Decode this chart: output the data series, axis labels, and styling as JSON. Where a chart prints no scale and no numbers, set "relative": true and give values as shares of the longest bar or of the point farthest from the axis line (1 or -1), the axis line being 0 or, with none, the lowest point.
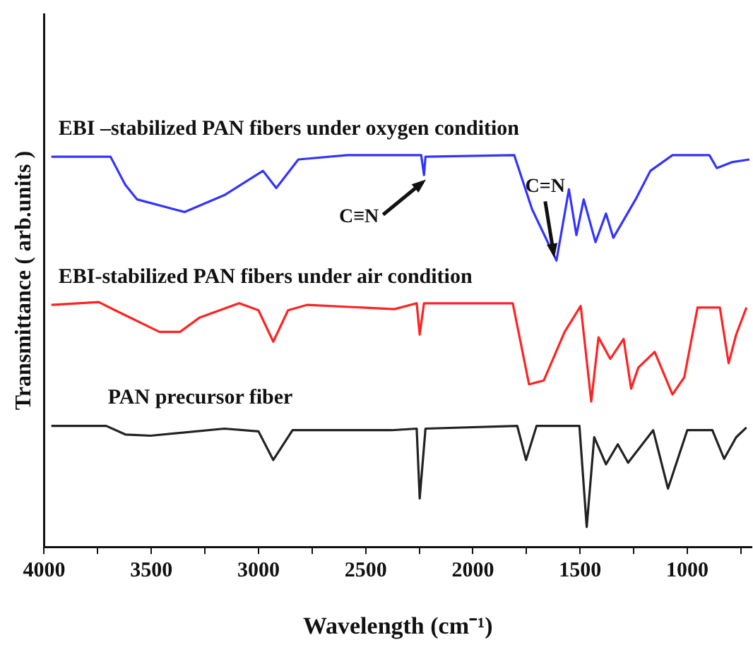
{
  "chart_data": {
    "type": "line",
    "relative": true,
    "xlabel": "Wavelength (cm⁻¹)",
    "ylabel": "Transmittance ( arb.units )",
    "xlim": [
      4000,
      700
    ],
    "xticks": [
      4000,
      {
        "value": 3750,
        "label": null
      },
      3500,
      {
        "value": 3250,
        "label": null
      },
      3000,
      {
        "value": 2750,
        "label": null
      },
      2500,
      {
        "value": 2250,
        "label": null
      },
      2000,
      {
        "value": 1750,
        "label": null
      },
      1500,
      {
        "value": 1250,
        "label": null
      },
      1000,
      {
        "value": 750,
        "label": null
      }
    ],
    "grid": false,
    "legend": false,
    "marker": "none",
    "line_style": "solid",
    "annotations": [
      {
        "text": "C≡N",
        "x": 2221,
        "y": 0.949
      },
      {
        "text": "C=N",
        "x": 1610,
        "y": 0.731
      }
    ],
    "series": [
      {
        "name": "EBI –stabilized PAN fibers under oxygen condition",
        "color": "#3333ff",
        "x": [
          3966,
          3690,
          3621,
          3566,
          3345,
          3159,
          2979,
          2917,
          2814,
          2586,
          2241,
          2228,
          2221,
          1807,
          1724,
          1610,
          1552,
          1517,
          1483,
          1428,
          1379,
          1345,
          1241,
          1172,
          1069,
          897,
          862,
          793,
          710
        ],
        "values": [
          0.996,
          0.996,
          0.924,
          0.887,
          0.855,
          0.898,
          0.96,
          0.916,
          0.989,
          1,
          1,
          0.949,
          0.996,
          1,
          0.862,
          0.731,
          0.913,
          0.796,
          0.887,
          0.778,
          0.851,
          0.789,
          0.887,
          0.96,
          1,
          1,
          0.967,
          0.982,
          0.989
        ]
      },
      {
        "name": "EBI-stabilized PAN fibers under air condition",
        "color": "#ff2222",
        "x": [
          3966,
          3745,
          3669,
          3462,
          3366,
          3276,
          3090,
          3000,
          2931,
          2862,
          2772,
          2366,
          2262,
          2248,
          2228,
          1814,
          1738,
          1669,
          1572,
          1497,
          1448,
          1414,
          1359,
          1297,
          1262,
          1228,
          1152,
          1069,
          1014,
          952,
          848,
          807,
          772,
          724
        ],
        "values": [
          0.618,
          0.625,
          0.604,
          0.549,
          0.549,
          0.585,
          0.622,
          0.604,
          0.524,
          0.604,
          0.618,
          0.607,
          0.622,
          0.542,
          0.622,
          0.622,
          0.415,
          0.425,
          0.549,
          0.615,
          0.371,
          0.535,
          0.48,
          0.531,
          0.404,
          0.458,
          0.498,
          0.389,
          0.433,
          0.611,
          0.611,
          0.469,
          0.542,
          0.611
        ]
      },
      {
        "name": "PAN precursor fiber",
        "color": "#222222",
        "x": [
          3966,
          3710,
          3621,
          3503,
          3159,
          3000,
          2931,
          2841,
          2379,
          2262,
          2248,
          2221,
          1793,
          1752,
          1703,
          1503,
          1469,
          1434,
          1379,
          1324,
          1276,
          1159,
          1090,
          1000,
          883,
          828,
          772,
          724
        ],
        "values": [
          0.309,
          0.309,
          0.287,
          0.284,
          0.302,
          0.295,
          0.222,
          0.298,
          0.298,
          0.302,
          0.124,
          0.302,
          0.309,
          0.222,
          0.309,
          0.309,
          0.051,
          0.28,
          0.211,
          0.262,
          0.215,
          0.298,
          0.149,
          0.298,
          0.298,
          0.225,
          0.28,
          0.305
        ]
      }
    ]
  }
}
